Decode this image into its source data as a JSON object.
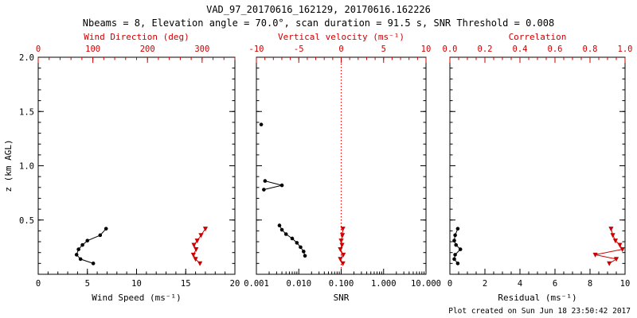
{
  "chart_data": {
    "type": "scatter",
    "title": "VAD_97_20170616_162129, 20170616.162226",
    "subtitle": "Nbeams = 8, Elevation angle = 70.0°, scan duration = 91.5 s, SNR Threshold = 0.008",
    "created_note": "Plot created on Sun Jun 18 23:50:42 2017",
    "ylabel": "z (km AGL)",
    "ylim": [
      0.0,
      2.0
    ],
    "yticks": [
      0.0,
      0.5,
      1.0,
      1.5,
      2.0
    ],
    "ytick_labels": [
      "",
      "0.5",
      "1.0",
      "1.5",
      "2.0"
    ],
    "y_minor_step": 0.1,
    "panels": [
      {
        "name": "wind",
        "bottom_axis": {
          "label": "Wind Speed (ms⁻¹)",
          "scale": "linear",
          "lim": [
            0,
            20
          ],
          "ticks": [
            0,
            5,
            10,
            15,
            20
          ],
          "tick_labels": [
            "0",
            "5",
            "10",
            "15",
            "20"
          ],
          "minor_step": 1,
          "color": "#000000"
        },
        "top_axis": {
          "label": "Wind Direction (deg)",
          "scale": "linear",
          "lim": [
            0,
            360
          ],
          "ticks": [
            0,
            100,
            200,
            300
          ],
          "tick_labels": [
            "0",
            "100",
            "200",
            "300"
          ],
          "minor_step": 20,
          "color": "#cc0000"
        },
        "series": [
          {
            "name": "wind-speed",
            "axis": "bottom",
            "color": "#000000",
            "marker": "circle",
            "z": [
              0.1,
              0.14,
              0.18,
              0.23,
              0.27,
              0.31,
              0.36,
              0.42
            ],
            "v": [
              5.6,
              4.3,
              3.9,
              4.1,
              4.5,
              5.0,
              6.3,
              6.9
            ]
          },
          {
            "name": "wind-direction",
            "axis": "top",
            "color": "#cc0000",
            "marker": "triangle",
            "z": [
              0.1,
              0.14,
              0.18,
              0.23,
              0.27,
              0.31,
              0.36,
              0.42
            ],
            "v": [
              296,
              288,
              284,
              289,
              285,
              291,
              298,
              306
            ]
          }
        ]
      },
      {
        "name": "snr",
        "bottom_axis": {
          "label": "SNR",
          "scale": "log",
          "lim": [
            0.001,
            10
          ],
          "ticks": [
            0.001,
            0.01,
            0.1,
            1,
            10
          ],
          "tick_labels": [
            "0.001",
            "0.010",
            "0.100",
            "1.000",
            "10.000"
          ],
          "color": "#000000"
        },
        "top_axis": {
          "label": "Vertical velocity (ms⁻¹)",
          "scale": "linear",
          "lim": [
            -10,
            10
          ],
          "ticks": [
            -10,
            -5,
            0,
            5,
            10
          ],
          "tick_labels": [
            "-10",
            "-5",
            "0",
            "5",
            "10"
          ],
          "minor_step": 1,
          "color": "#cc0000"
        },
        "refline": {
          "axis": "top",
          "value": 0,
          "color": "#cc0000",
          "style": "dotted"
        },
        "series": [
          {
            "name": "snr-profile-low",
            "axis": "bottom",
            "color": "#000000",
            "marker": "circle",
            "z": [
              0.17,
              0.21,
              0.25,
              0.29,
              0.33,
              0.37,
              0.41,
              0.45
            ],
            "v": [
              0.014,
              0.013,
              0.011,
              0.009,
              0.007,
              0.005,
              0.004,
              0.0035
            ]
          },
          {
            "name": "snr-profile-mid",
            "axis": "bottom",
            "color": "#000000",
            "marker": "circle",
            "z": [
              0.78,
              0.82,
              0.86
            ],
            "v": [
              0.0015,
              0.004,
              0.0016
            ]
          },
          {
            "name": "snr-point-high",
            "axis": "bottom",
            "color": "#000000",
            "marker": "circle",
            "z": [
              1.38
            ],
            "v": [
              0.0013
            ]
          },
          {
            "name": "vertical-velocity",
            "axis": "top",
            "color": "#cc0000",
            "marker": "triangle",
            "z": [
              0.1,
              0.14,
              0.18,
              0.23,
              0.27,
              0.31,
              0.36,
              0.42
            ],
            "v": [
              0.2,
              -0.1,
              0.25,
              -0.1,
              0.1,
              0.0,
              0.15,
              0.2
            ]
          }
        ]
      },
      {
        "name": "residual",
        "bottom_axis": {
          "label": "Residual (ms⁻¹)",
          "scale": "linear",
          "lim": [
            0,
            10
          ],
          "ticks": [
            0,
            2,
            4,
            6,
            8,
            10
          ],
          "tick_labels": [
            "0",
            "2",
            "4",
            "6",
            "8",
            "10"
          ],
          "minor_step": 0.5,
          "color": "#000000"
        },
        "top_axis": {
          "label": "Correlation",
          "scale": "linear",
          "lim": [
            0,
            1
          ],
          "ticks": [
            0,
            0.2,
            0.4,
            0.6,
            0.8,
            1
          ],
          "tick_labels": [
            "0.0",
            "0.2",
            "0.4",
            "0.6",
            "0.8",
            "1.0"
          ],
          "minor_step": 0.05,
          "color": "#cc0000"
        },
        "series": [
          {
            "name": "residual",
            "axis": "bottom",
            "color": "#000000",
            "marker": "circle",
            "z": [
              0.1,
              0.14,
              0.18,
              0.23,
              0.27,
              0.31,
              0.36,
              0.42
            ],
            "v": [
              0.45,
              0.25,
              0.3,
              0.6,
              0.35,
              0.25,
              0.3,
              0.45
            ]
          },
          {
            "name": "correlation",
            "axis": "top",
            "color": "#cc0000",
            "marker": "triangle",
            "z": [
              0.1,
              0.14,
              0.18,
              0.23,
              0.27,
              0.31,
              0.36,
              0.42
            ],
            "v": [
              0.91,
              0.95,
              0.83,
              0.985,
              0.97,
              0.945,
              0.93,
              0.92
            ]
          }
        ]
      }
    ]
  }
}
